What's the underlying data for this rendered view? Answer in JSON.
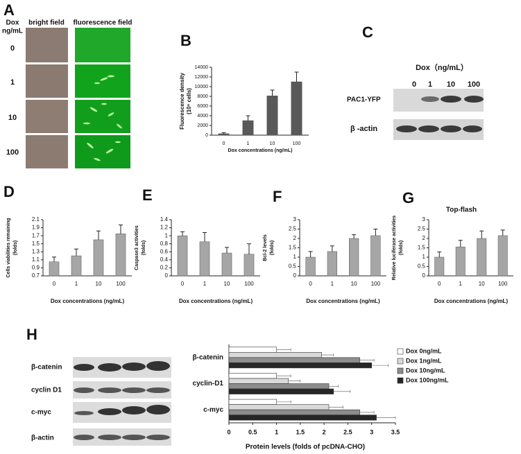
{
  "panel_labels": [
    "A",
    "B",
    "C",
    "D",
    "E",
    "F",
    "G",
    "H"
  ],
  "panel_a": {
    "row_header": "Dox",
    "row_header_unit": "ng/mL",
    "columns": [
      "bright field",
      "fluorescence field"
    ],
    "rows": [
      "0",
      "1",
      "10",
      "100"
    ]
  },
  "panel_c": {
    "title": "Dox（ng/mL）",
    "lanes": [
      "0",
      "1",
      "10",
      "100"
    ],
    "rows": [
      "PAC1-YFP",
      "β -actin"
    ]
  },
  "panel_h_blot": {
    "rows": [
      "β-catenin",
      "cyclin D1",
      "c-myc",
      "β-actin"
    ]
  },
  "chart_data": [
    {
      "type": "bar",
      "ylabel": [
        "Fluorescence density",
        "(10⁶ cells)"
      ],
      "xlabel": "Dox concentrations (ng/mL)",
      "categories": [
        "0",
        "1",
        "10",
        "100"
      ],
      "values": [
        300,
        3000,
        8100,
        11000
      ],
      "errors": [
        200,
        1000,
        1200,
        2000
      ],
      "color": "#595959",
      "ylim": [
        0,
        14000
      ],
      "yticks": [
        0,
        2000,
        4000,
        6000,
        8000,
        10000,
        12000,
        14000
      ]
    },
    {
      "type": "bar",
      "ylabel": [
        "Cells viabilities remaining",
        "(folds)"
      ],
      "xlabel": "Dox concentrations (ng/mL)",
      "categories": [
        "0",
        "1",
        "10",
        "100"
      ],
      "values": [
        1.05,
        1.2,
        1.6,
        1.75
      ],
      "errors": [
        0.12,
        0.17,
        0.22,
        0.22
      ],
      "color": "#a6a6a6",
      "ylim": [
        0.7,
        2.1
      ],
      "yticks": [
        0.7,
        0.9,
        1.1,
        1.3,
        1.5,
        1.7,
        1.9,
        2.1
      ]
    },
    {
      "type": "bar",
      "ylabel": [
        "Caspase3 activities",
        "(folds)"
      ],
      "xlabel": "Dox concentrations (ng/mL)",
      "categories": [
        "0",
        "1",
        "10",
        "100"
      ],
      "values": [
        1.0,
        0.85,
        0.57,
        0.54
      ],
      "errors": [
        0.1,
        0.23,
        0.14,
        0.26
      ],
      "color": "#a6a6a6",
      "ylim": [
        0,
        1.4
      ],
      "yticks": [
        0,
        0.2,
        0.4,
        0.6,
        0.8,
        1,
        1.2,
        1.4
      ]
    },
    {
      "type": "bar",
      "ylabel": [
        "Bcl-2 levels",
        "(folds)"
      ],
      "xlabel": "Dox concentrations (ng/mL)",
      "categories": [
        "0",
        "1",
        "10",
        "100"
      ],
      "values": [
        1.0,
        1.3,
        2.0,
        2.15
      ],
      "errors": [
        0.3,
        0.3,
        0.2,
        0.35
      ],
      "color": "#a6a6a6",
      "ylim": [
        0,
        3
      ],
      "yticks": [
        0,
        0.5,
        1,
        1.5,
        2,
        2.5,
        3
      ]
    },
    {
      "type": "bar",
      "title": "Top-flash",
      "ylabel": [
        "Relative luciferase activities",
        "(folds)"
      ],
      "xlabel": "Dox concentrations (ng/mL)",
      "categories": [
        "0",
        "1",
        "10",
        "100"
      ],
      "values": [
        1.0,
        1.55,
        2.0,
        2.15
      ],
      "errors": [
        0.28,
        0.35,
        0.4,
        0.3
      ],
      "color": "#a6a6a6",
      "ylim": [
        0,
        3
      ],
      "yticks": [
        0,
        0.5,
        1,
        1.5,
        2,
        2.5,
        3
      ]
    },
    {
      "type": "hbar",
      "xlabel": "Protein levels (folds of pcDNA-CHO)",
      "categories": [
        "β-catenin",
        "cyclin-D1",
        "c-myc"
      ],
      "series": [
        {
          "name": "Dox 0ng/mL",
          "color": "#ffffff",
          "values": [
            1.0,
            1.0,
            1.0
          ],
          "errors": [
            0.3,
            0.3,
            0.3
          ]
        },
        {
          "name": "Dox 1ng/mL",
          "color": "#d9d9d9",
          "values": [
            1.95,
            1.25,
            2.1
          ],
          "errors": [
            0.25,
            0.25,
            0.3
          ]
        },
        {
          "name": "Dox 10ng/mL",
          "color": "#8c8c8c",
          "values": [
            2.75,
            2.1,
            2.75
          ],
          "errors": [
            0.3,
            0.2,
            0.3
          ]
        },
        {
          "name": "Dox 100ng/mL",
          "color": "#262626",
          "values": [
            3.0,
            2.2,
            3.1
          ],
          "errors": [
            0.35,
            0.35,
            0.4
          ]
        }
      ],
      "xlim": [
        0,
        3.5
      ],
      "xticks": [
        0,
        0.5,
        1,
        1.5,
        2,
        2.5,
        3,
        3.5
      ]
    }
  ]
}
